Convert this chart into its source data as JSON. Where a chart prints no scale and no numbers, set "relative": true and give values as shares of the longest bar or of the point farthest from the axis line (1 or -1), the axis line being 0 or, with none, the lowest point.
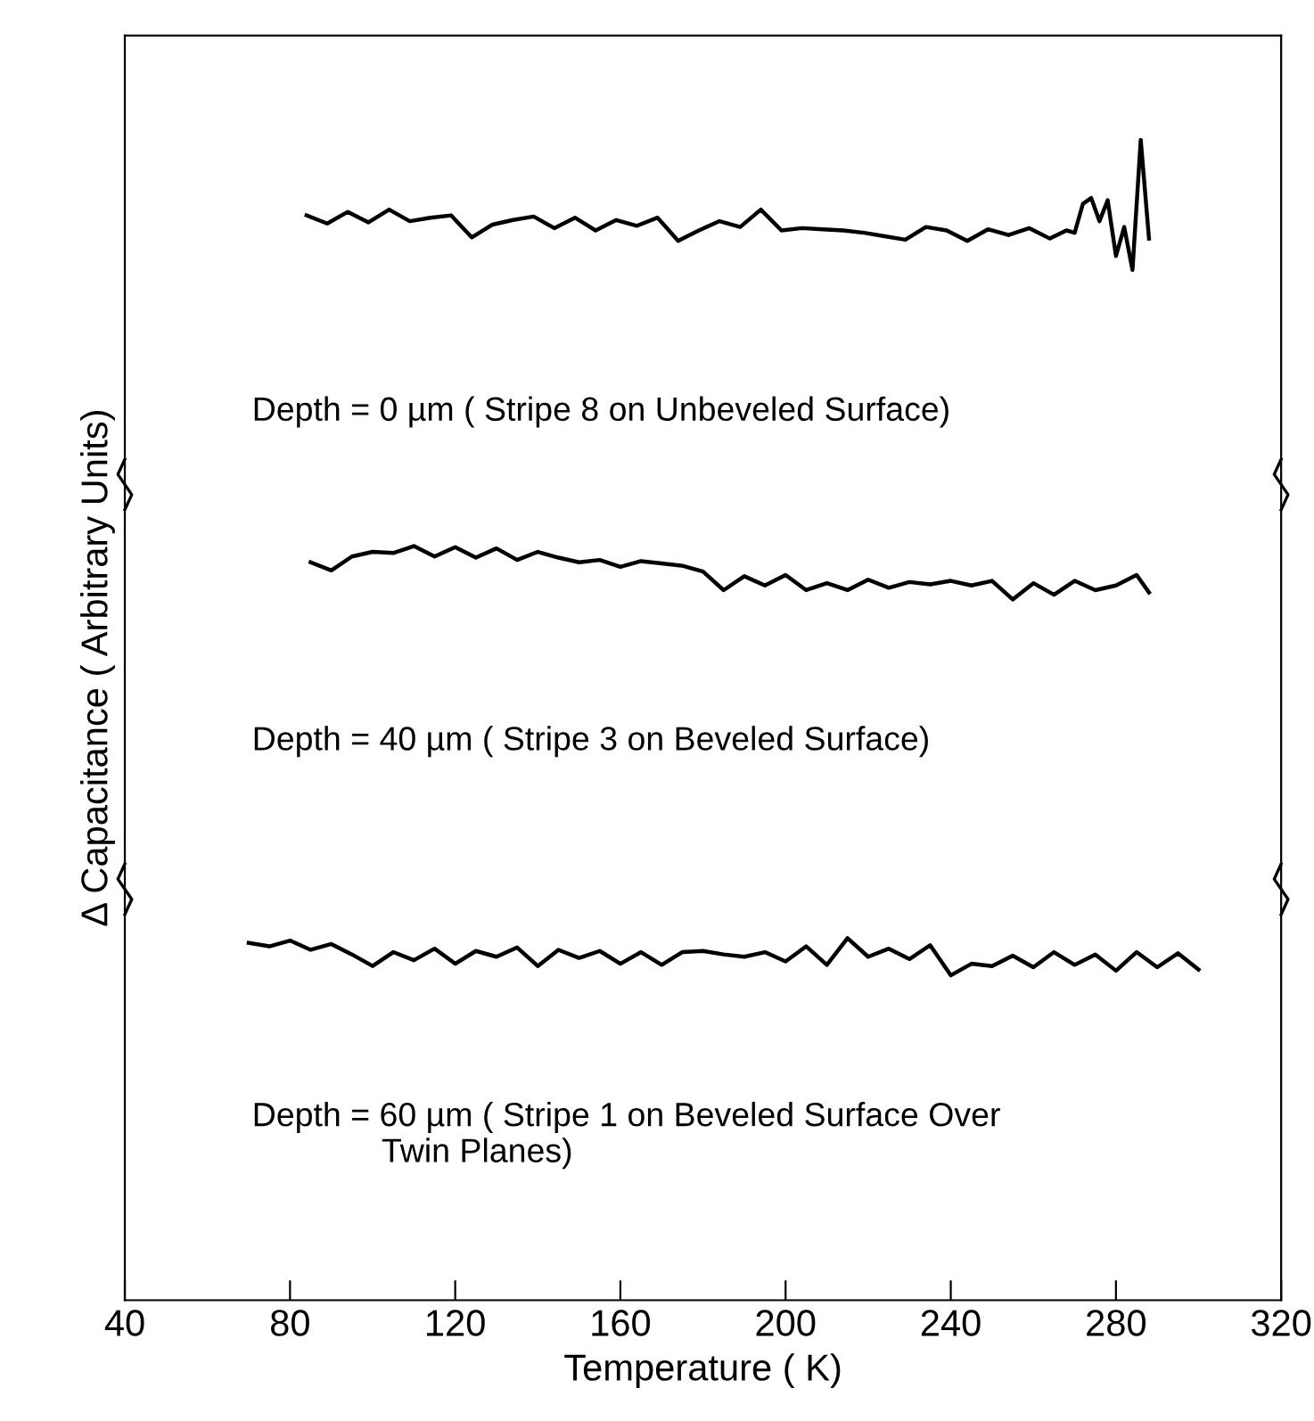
{
  "chart_data": {
    "type": "line",
    "relative": true,
    "xlabel": "Temperature ( K)",
    "ylabel": "Δ Capacitance ( Arbitrary Units)",
    "xlim": [
      40,
      320
    ],
    "xticks": [
      40,
      80,
      120,
      160,
      200,
      240,
      280,
      320
    ],
    "grid": false,
    "marker": "none",
    "line_style": "solid",
    "tick_labels": "x",
    "series": [
      {
        "color": "#000000",
        "x": [
          84,
          89,
          94,
          99,
          104,
          109,
          114,
          119,
          124,
          129,
          134,
          139,
          144,
          149,
          154,
          159,
          164,
          169,
          174,
          179,
          184,
          189,
          194,
          199,
          204,
          209,
          214,
          219,
          224,
          229,
          234,
          239,
          244,
          249,
          254,
          259,
          264,
          268,
          270,
          272,
          274,
          276,
          278,
          280,
          282,
          284,
          286,
          288
        ],
        "values": [
          0.935,
          0.928,
          0.938,
          0.929,
          0.94,
          0.93,
          0.933,
          0.935,
          0.916,
          0.927,
          0.931,
          0.934,
          0.924,
          0.933,
          0.922,
          0.931,
          0.926,
          0.933,
          0.913,
          0.922,
          0.93,
          0.925,
          0.94,
          0.922,
          0.924,
          0.923,
          0.922,
          0.92,
          0.917,
          0.914,
          0.925,
          0.922,
          0.913,
          0.923,
          0.918,
          0.924,
          0.915,
          0.922,
          0.92,
          0.945,
          0.95,
          0.93,
          0.948,
          0.9,
          0.925,
          0.888,
          1.0,
          0.915
        ]
      },
      {
        "color": "#000000",
        "x": [
          85,
          90,
          95,
          100,
          105,
          110,
          115,
          120,
          125,
          130,
          135,
          140,
          145,
          150,
          155,
          160,
          165,
          170,
          175,
          180,
          185,
          190,
          195,
          200,
          205,
          210,
          215,
          220,
          225,
          230,
          235,
          240,
          245,
          250,
          255,
          260,
          265,
          270,
          275,
          280,
          285,
          288
        ],
        "values": [
          0.636,
          0.629,
          0.641,
          0.645,
          0.644,
          0.65,
          0.641,
          0.649,
          0.64,
          0.648,
          0.638,
          0.645,
          0.64,
          0.636,
          0.638,
          0.632,
          0.637,
          0.635,
          0.633,
          0.628,
          0.612,
          0.624,
          0.616,
          0.625,
          0.612,
          0.618,
          0.612,
          0.621,
          0.614,
          0.619,
          0.617,
          0.62,
          0.616,
          0.62,
          0.604,
          0.618,
          0.608,
          0.62,
          0.612,
          0.616,
          0.625,
          0.61
        ]
      },
      {
        "color": "#000000",
        "x": [
          70,
          75,
          80,
          85,
          90,
          95,
          100,
          105,
          110,
          115,
          120,
          125,
          130,
          135,
          140,
          145,
          150,
          155,
          160,
          165,
          170,
          175,
          180,
          185,
          190,
          195,
          200,
          205,
          210,
          215,
          220,
          225,
          230,
          235,
          240,
          245,
          250,
          255,
          260,
          265,
          270,
          275,
          280,
          285,
          290,
          295,
          300
        ],
        "values": [
          0.308,
          0.305,
          0.31,
          0.302,
          0.307,
          0.298,
          0.288,
          0.3,
          0.293,
          0.303,
          0.29,
          0.301,
          0.296,
          0.304,
          0.288,
          0.302,
          0.295,
          0.301,
          0.29,
          0.3,
          0.289,
          0.3,
          0.301,
          0.298,
          0.296,
          0.3,
          0.292,
          0.305,
          0.289,
          0.312,
          0.296,
          0.303,
          0.294,
          0.306,
          0.28,
          0.29,
          0.288,
          0.297,
          0.287,
          0.3,
          0.289,
          0.298,
          0.284,
          0.3,
          0.287,
          0.299,
          0.285
        ]
      }
    ],
    "annotations": [
      "Depth = 0 µm ( Stripe 8 on Unbeveled Surface)",
      "Depth = 40 µm ( Stripe 3 on Beveled Surface)",
      "Depth = 60 µm ( Stripe 1 on Beveled Surface Over\n              Twin Planes)"
    ]
  }
}
